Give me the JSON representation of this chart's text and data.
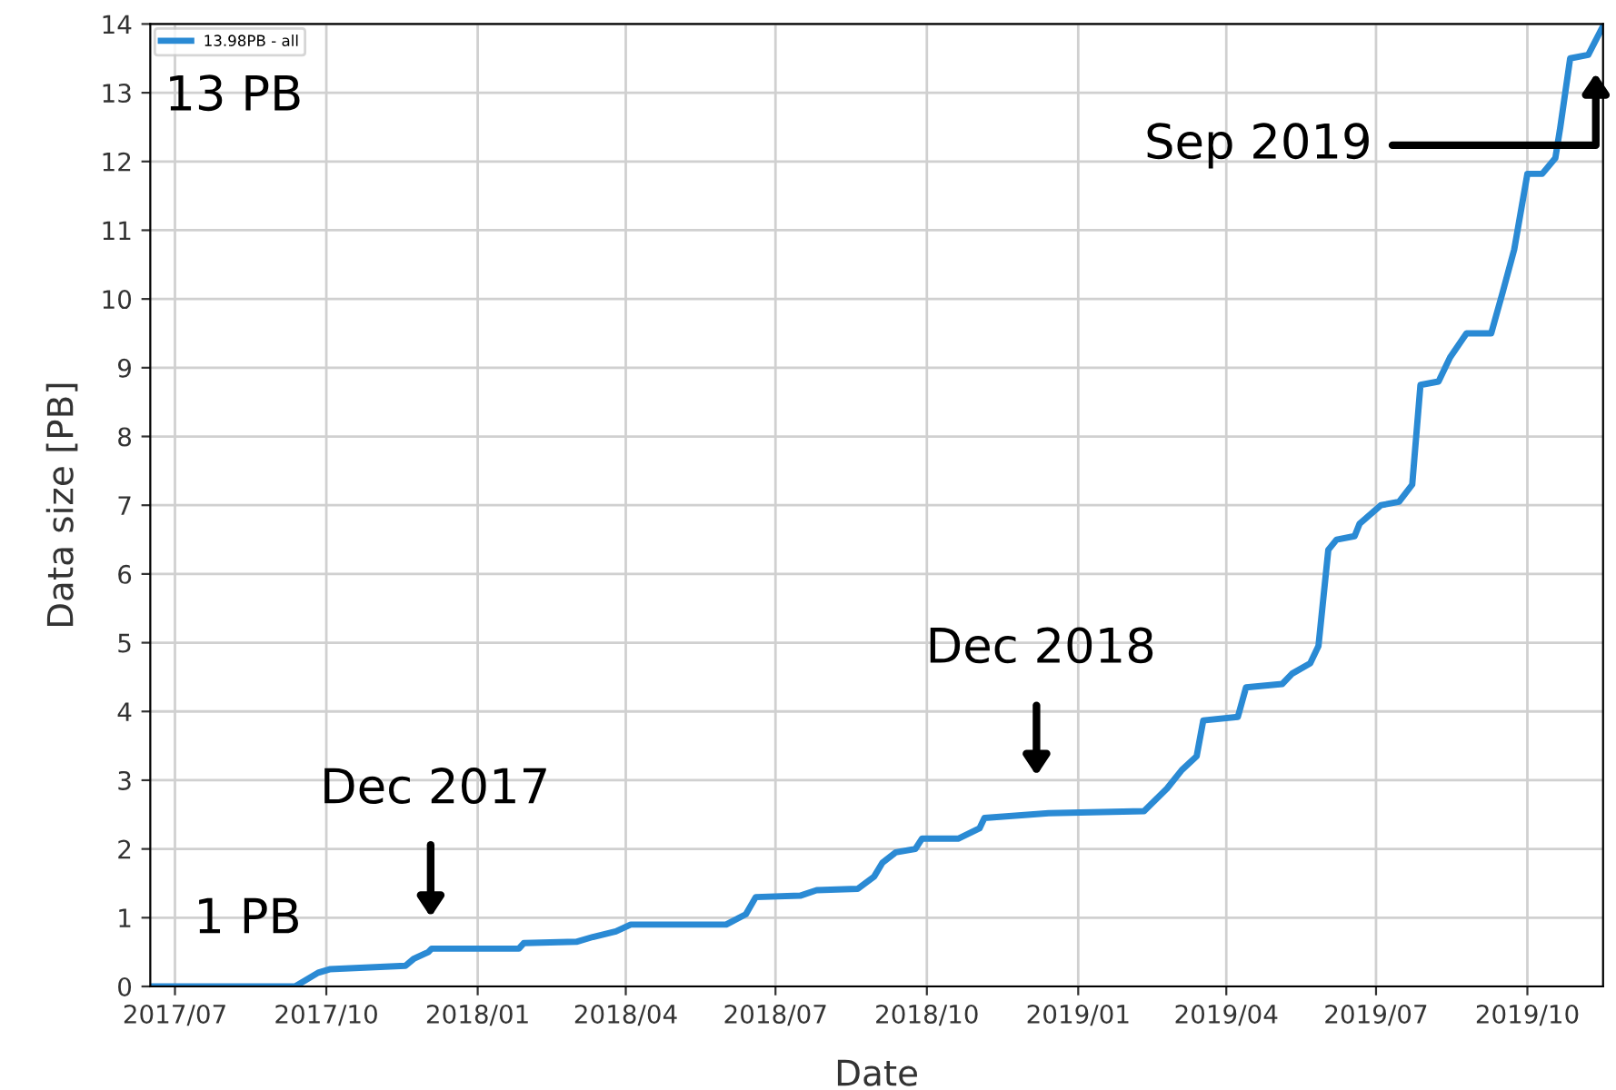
{
  "chart_data": {
    "type": "line",
    "xlabel": "Date",
    "ylabel": "Data size [PB]",
    "xlim": [
      "2017-06-16",
      "2019-11-16"
    ],
    "ylim": [
      0,
      14
    ],
    "xticks": [
      {
        "value": "2017-07-01",
        "label": "2017/07"
      },
      {
        "value": "2017-10-01",
        "label": "2017/10"
      },
      {
        "value": "2018-01-01",
        "label": "2018/01"
      },
      {
        "value": "2018-04-01",
        "label": "2018/04"
      },
      {
        "value": "2018-07-01",
        "label": "2018/07"
      },
      {
        "value": "2018-10-01",
        "label": "2018/10"
      },
      {
        "value": "2019-01-01",
        "label": "2019/01"
      },
      {
        "value": "2019-04-01",
        "label": "2019/04"
      },
      {
        "value": "2019-07-01",
        "label": "2019/07"
      },
      {
        "value": "2019-10-01",
        "label": "2019/10"
      }
    ],
    "yticks": [
      0,
      1,
      2,
      3,
      4,
      5,
      6,
      7,
      8,
      9,
      10,
      11,
      12,
      13,
      14
    ],
    "grid": true,
    "legend": "top left",
    "marker": "none",
    "line_style": "solid",
    "series": [
      {
        "name": "13.98PB - all",
        "color": "#2a8ad4",
        "x": [
          "2017-06-16",
          "2017-09-12",
          "2017-09-26",
          "2017-10-03",
          "2017-11-18",
          "2017-11-23",
          "2017-12-02",
          "2017-12-04",
          "2018-01-26",
          "2018-01-29",
          "2018-03-02",
          "2018-03-12",
          "2018-03-26",
          "2018-04-04",
          "2018-06-01",
          "2018-06-13",
          "2018-06-19",
          "2018-07-16",
          "2018-07-26",
          "2018-08-20",
          "2018-08-30",
          "2018-09-04",
          "2018-09-12",
          "2018-09-24",
          "2018-09-28",
          "2018-10-20",
          "2018-11-02",
          "2018-11-05",
          "2018-12-03",
          "2018-12-14",
          "2019-02-10",
          "2019-02-24",
          "2019-03-05",
          "2019-03-14",
          "2019-03-18",
          "2019-04-08",
          "2019-04-13",
          "2019-05-05",
          "2019-05-11",
          "2019-05-22",
          "2019-05-27",
          "2019-06-02",
          "2019-06-07",
          "2019-06-18",
          "2019-06-21",
          "2019-07-04",
          "2019-07-15",
          "2019-07-23",
          "2019-07-28",
          "2019-08-08",
          "2019-08-15",
          "2019-08-25",
          "2019-09-09",
          "2019-09-16",
          "2019-09-23",
          "2019-10-01",
          "2019-10-10",
          "2019-10-18",
          "2019-10-21",
          "2019-10-27",
          "2019-11-07",
          "2019-11-16"
        ],
        "values": [
          0,
          0,
          0.2,
          0.25,
          0.3,
          0.4,
          0.5,
          0.55,
          0.55,
          0.63,
          0.65,
          0.72,
          0.8,
          0.9,
          0.9,
          1.05,
          1.3,
          1.32,
          1.4,
          1.42,
          1.6,
          1.8,
          1.95,
          2.0,
          2.15,
          2.15,
          2.3,
          2.45,
          2.5,
          2.52,
          2.55,
          2.88,
          3.15,
          3.35,
          3.87,
          3.92,
          4.35,
          4.4,
          4.55,
          4.7,
          4.95,
          6.35,
          6.5,
          6.55,
          6.73,
          7.0,
          7.05,
          7.3,
          8.75,
          8.8,
          9.15,
          9.5,
          9.5,
          10.1,
          10.72,
          11.82,
          11.82,
          12.05,
          12.5,
          13.5,
          13.55,
          13.97
        ]
      }
    ],
    "annotations": [
      "13 PB",
      "1 PB",
      "Dec 2017",
      "Dec 2018",
      "Sep 2019"
    ]
  }
}
